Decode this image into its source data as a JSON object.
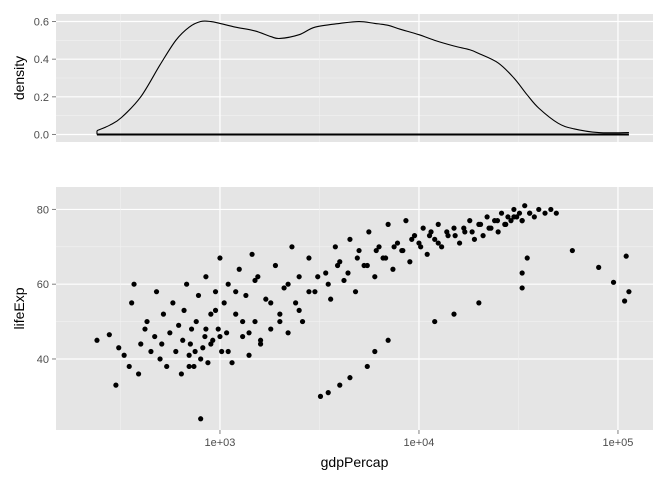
{
  "colors": {
    "panel_bg": "#E5E5E5",
    "grid_major": "#FFFFFF",
    "grid_minor": "#F2F2F2",
    "mark": "#000000",
    "tick_text": "#4D4D4D"
  },
  "chart_data": [
    {
      "type": "line",
      "subtype": "density",
      "xscale": "log10",
      "xlim": [
        150,
        150000
      ],
      "ylim": [
        -0.04,
        0.64
      ],
      "ylabel": "density",
      "xlabel": "",
      "yticks": [
        {
          "value": 0.0,
          "label": "0.0"
        },
        {
          "value": 0.2,
          "label": "0.2"
        },
        {
          "value": 0.4,
          "label": "0.4"
        },
        {
          "value": 0.6,
          "label": "0.6"
        }
      ],
      "grid": true,
      "x": [
        241,
        280,
        320,
        400,
        500,
        600,
        700,
        800,
        900,
        1000,
        1200,
        1500,
        1800,
        2000,
        2500,
        3000,
        4000,
        5000,
        6000,
        7000,
        8000,
        10000,
        12000,
        15000,
        18000,
        20000,
        25000,
        30000,
        35000,
        40000,
        50000,
        60000,
        80000,
        113523
      ],
      "values": [
        0.02,
        0.05,
        0.09,
        0.2,
        0.37,
        0.5,
        0.57,
        0.6,
        0.6,
        0.59,
        0.57,
        0.55,
        0.52,
        0.51,
        0.53,
        0.57,
        0.59,
        0.6,
        0.59,
        0.58,
        0.56,
        0.53,
        0.5,
        0.47,
        0.45,
        0.43,
        0.38,
        0.3,
        0.21,
        0.14,
        0.06,
        0.03,
        0.01,
        0.01
      ]
    },
    {
      "type": "scatter",
      "xscale": "log10",
      "xlim": [
        150,
        150000
      ],
      "ylim": [
        21,
        86
      ],
      "xlabel": "gdpPercap",
      "ylabel": "lifeExp",
      "xticks": [
        {
          "value": 1000,
          "label": "1e+03"
        },
        {
          "value": 10000,
          "label": "1e+04"
        },
        {
          "value": 100000,
          "label": "1e+05"
        }
      ],
      "yticks": [
        {
          "value": 40,
          "label": "40"
        },
        {
          "value": 60,
          "label": "60"
        },
        {
          "value": 80,
          "label": "80"
        }
      ],
      "grid": true,
      "x": [
        241,
        278,
        300,
        310,
        330,
        350,
        360,
        370,
        390,
        400,
        420,
        430,
        450,
        470,
        480,
        500,
        510,
        520,
        540,
        560,
        580,
        600,
        620,
        640,
        650,
        660,
        680,
        700,
        710,
        720,
        740,
        760,
        780,
        800,
        820,
        840,
        850,
        870,
        900,
        920,
        950,
        980,
        1000,
        1020,
        1050,
        1080,
        1100,
        1150,
        1200,
        1250,
        1300,
        1350,
        1400,
        1450,
        1500,
        1550,
        1600,
        1700,
        1800,
        1900,
        2000,
        2100,
        2200,
        2300,
        2400,
        2500,
        2600,
        2800,
        3000,
        3200,
        3400,
        3600,
        3800,
        4000,
        4200,
        4500,
        4800,
        5000,
        5300,
        5600,
        6000,
        6300,
        6600,
        7000,
        7400,
        7800,
        8200,
        8600,
        9000,
        9500,
        10000,
        10500,
        11000,
        11500,
        12000,
        12500,
        13000,
        14000,
        15000,
        16000,
        17000,
        18000,
        19000,
        20000,
        21000,
        22000,
        23000,
        24000,
        25000,
        26000,
        27000,
        28000,
        29000,
        30000,
        31000,
        32000,
        33000,
        34000,
        36000,
        38000,
        40000,
        43000,
        46000,
        49000,
        59000,
        80000,
        95000,
        108000,
        110000,
        113523,
        700,
        750,
        800,
        850,
        900,
        950,
        1000,
        1100,
        1200,
        1300,
        1400,
        1500,
        1600,
        1800,
        2000,
        2200,
        2500,
        2800,
        3100,
        3500,
        3900,
        4400,
        4900,
        5500,
        6100,
        6800,
        7500,
        8300,
        9200,
        10200,
        11300,
        12500,
        13800,
        15200,
        16800,
        18500,
        20400,
        22500,
        24800,
        27300,
        30000,
        33000,
        36000,
        3500,
        4000,
        4500,
        12000,
        15000,
        20000,
        33000,
        33000,
        35000,
        5500,
        6000,
        7000
      ],
      "values": [
        45,
        46.5,
        33,
        43,
        41,
        38,
        55,
        60,
        36,
        44,
        48,
        50,
        42,
        46,
        58,
        40,
        44,
        52,
        38,
        47,
        55,
        42,
        49,
        36,
        45,
        53,
        60,
        41,
        44,
        48,
        38,
        50,
        57,
        24,
        43,
        46,
        62,
        39,
        52,
        45,
        58,
        48,
        67,
        42,
        55,
        47,
        60,
        39,
        52,
        64,
        46,
        57,
        41,
        68,
        50,
        62,
        44,
        56,
        48,
        65,
        52,
        59,
        47,
        70,
        55,
        62,
        50,
        67,
        58,
        30,
        63,
        56,
        70,
        66,
        61,
        72,
        58,
        69,
        65,
        74,
        62,
        70,
        67,
        76,
        64,
        71,
        69,
        77,
        66,
        73,
        71,
        75,
        68,
        74,
        72,
        76,
        70,
        73,
        75,
        71,
        74,
        77,
        72,
        76,
        73,
        78,
        75,
        77,
        74,
        79,
        76,
        78,
        77,
        80,
        78,
        79,
        77,
        81,
        79,
        78,
        80,
        79,
        80,
        79,
        69,
        64.5,
        60.5,
        55.5,
        67.5,
        58,
        38,
        42,
        40,
        48,
        44,
        53,
        46,
        42,
        58,
        50,
        47,
        61,
        45,
        55,
        50,
        60,
        53,
        58,
        62,
        60,
        65,
        63,
        67,
        65,
        69,
        67,
        70,
        69,
        72,
        70,
        73,
        71,
        74,
        73,
        75,
        74,
        76,
        75,
        77,
        76,
        78,
        77,
        79,
        31,
        33,
        35,
        50,
        52,
        55,
        63,
        59,
        67,
        38,
        42,
        45
      ]
    }
  ]
}
